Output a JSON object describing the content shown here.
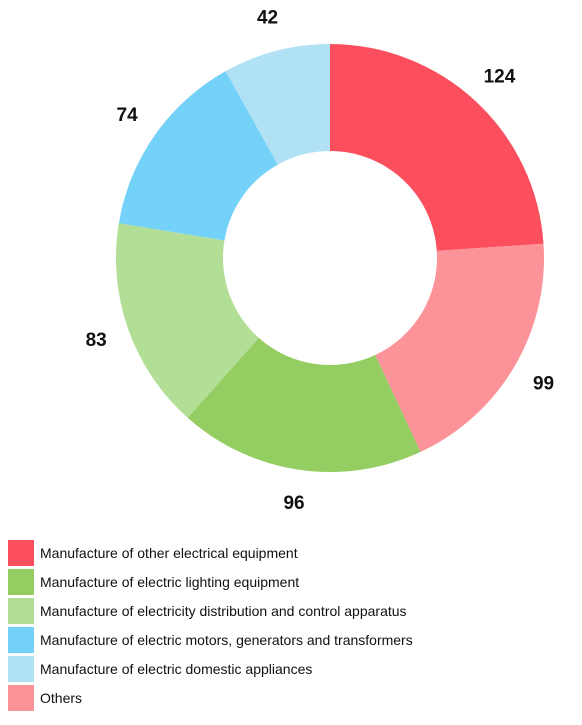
{
  "chart_data": {
    "type": "donut",
    "title": "",
    "start_angle_deg": 90,
    "direction": "clockwise",
    "slices": [
      {
        "label": "Manufacture of other electrical equipment",
        "value": 124,
        "color": "#fb4f5e"
      },
      {
        "label": "Others",
        "value": 99,
        "color": "#fb9399"
      },
      {
        "label": "Manufacture of electric lighting equipment",
        "value": 96,
        "color": "#94cd62"
      },
      {
        "label": "Manufacture of electricity distribution and control apparatus",
        "value": 83,
        "color": "#b2de95"
      },
      {
        "label": "Manufacture of electric motors, generators and transformers",
        "value": 74,
        "color": "#74d1f7"
      },
      {
        "label": "Manufacture of electric domestic appliances",
        "value": 42,
        "color": "#b0e1f4"
      }
    ],
    "legend": {
      "placement": "bottom",
      "items": [
        {
          "label": "Manufacture of other electrical equipment",
          "color": "#fb4f5e"
        },
        {
          "label": "Manufacture of electric lighting equipment",
          "color": "#94cd62"
        },
        {
          "label": "Manufacture of electricity distribution and control apparatus",
          "color": "#b2de95"
        },
        {
          "label": "Manufacture of electric motors, generators and transformers",
          "color": "#74d1f7"
        },
        {
          "label": "Manufacture of electric domestic appliances",
          "color": "#b0e1f4"
        },
        {
          "label": "Others",
          "color": "#fb9399"
        }
      ]
    }
  }
}
